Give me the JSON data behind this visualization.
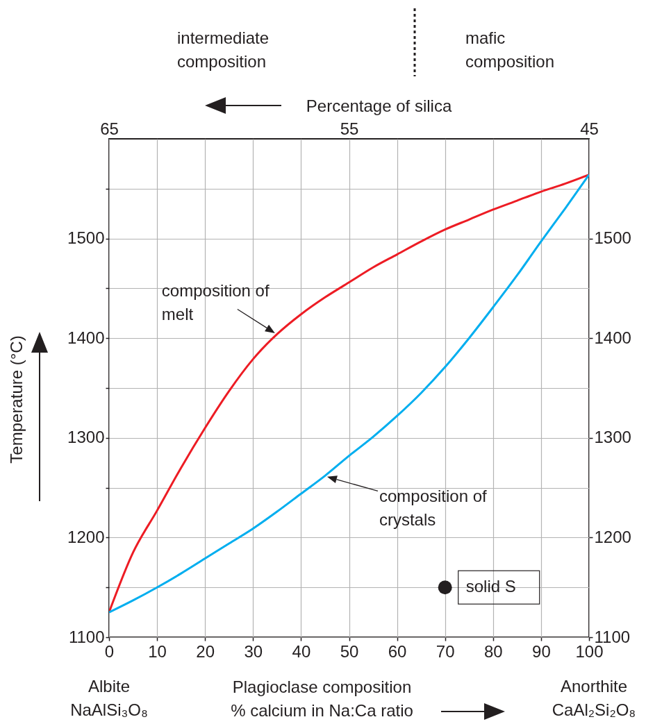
{
  "chart_data": {
    "type": "line",
    "xlabel": "Plagioclase composition\n% calcium in Na:Ca ratio",
    "ylabel": "Temperature (°C)",
    "x2label": "Percentage of silica",
    "xlim": [
      0,
      100
    ],
    "xticks": [
      0,
      10,
      20,
      30,
      40,
      50,
      60,
      70,
      80,
      90,
      100
    ],
    "ylim": [
      1100,
      1600
    ],
    "yticks": [
      1100,
      {
        "value": 1150,
        "label": null
      },
      1200,
      {
        "value": 1250,
        "label": null
      },
      1300,
      {
        "value": 1350,
        "label": null
      },
      1400,
      {
        "value": 1450,
        "label": null
      },
      1500,
      {
        "value": 1550,
        "label": null
      }
    ],
    "y2lim": [
      1100,
      1600
    ],
    "y2ticks": [
      1100,
      1200,
      1300,
      1400,
      1500
    ],
    "x2lim": [
      65,
      45
    ],
    "x2ticks": [
      65,
      55,
      45
    ],
    "grid": true,
    "x": [
      0,
      5,
      10,
      15,
      20,
      25,
      30,
      35,
      40,
      45,
      50,
      55,
      60,
      65,
      70,
      75,
      80,
      85,
      90,
      95,
      100
    ],
    "series": [
      {
        "name": "composition of melt",
        "color": "#ed1c24",
        "values": [
          1125,
          1185,
          1227,
          1270,
          1310,
          1347,
          1379,
          1404,
          1424,
          1441,
          1456,
          1471,
          1484,
          1497,
          1509,
          1519,
          1529,
          1538,
          1547,
          1555,
          1564
        ]
      },
      {
        "name": "composition of crystals",
        "color": "#00aeef",
        "values": [
          1125,
          1137,
          1150,
          1164,
          1179,
          1194,
          1209,
          1226,
          1244,
          1262,
          1282,
          1301,
          1322,
          1345,
          1371,
          1400,
          1431,
          1463,
          1497,
          1530,
          1564
        ]
      },
      {
        "name": "solid S",
        "type": "scatter",
        "color": "#231f20",
        "x": [
          70
        ],
        "values": [
          1150
        ]
      }
    ],
    "annotations": [
      "intermediate\ncomposition",
      "mafic\ncomposition",
      "Albite\nNaAlSi₃O₈",
      "Anorthite\nCaAl₂Si₂O₈"
    ]
  }
}
